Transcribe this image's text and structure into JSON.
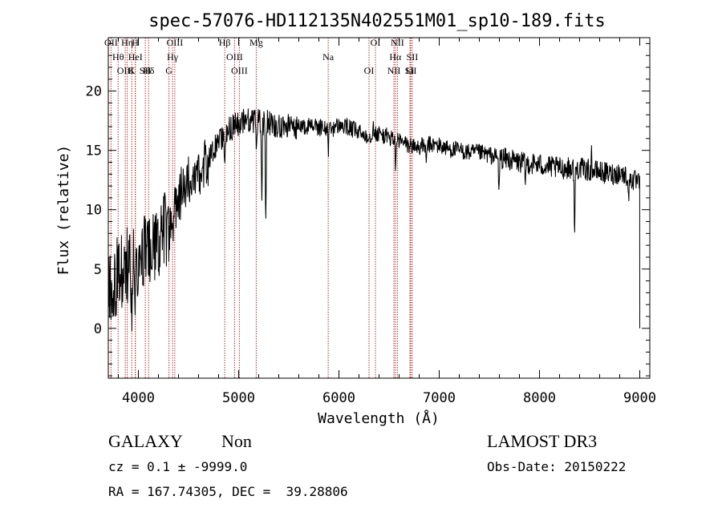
{
  "chart_data": {
    "type": "line",
    "title": "spec-57076-HD112135N402551M01_sp10-189.fits",
    "xlabel": "Wavelength (Å)",
    "ylabel": "Flux (relative)",
    "xlim": [
      3700,
      9100
    ],
    "ylim": [
      -4.2,
      24.5
    ],
    "x_ticks": [
      4000,
      5000,
      6000,
      7000,
      8000,
      9000
    ],
    "y_ticks": [
      0,
      5,
      10,
      15,
      20
    ],
    "x_tick_labels": [
      "4000",
      "5000",
      "6000",
      "7000",
      "8000",
      "9000"
    ],
    "y_tick_labels": [
      "0",
      "5",
      "10",
      "15",
      "20"
    ],
    "grid": false,
    "line_color": "#000000",
    "marker_color": "#b03030",
    "spectrum_anchors": {
      "wavelength": [
        3700,
        3750,
        3800,
        3850,
        3900,
        3950,
        4000,
        4050,
        4100,
        4150,
        4200,
        4250,
        4300,
        4350,
        4400,
        4450,
        4500,
        4550,
        4600,
        4650,
        4700,
        4750,
        4800,
        4850,
        4900,
        4950,
        5000,
        5100,
        5200,
        5300,
        5400,
        5500,
        5600,
        5700,
        5800,
        5900,
        6000,
        6100,
        6200,
        6300,
        6400,
        6500,
        6600,
        6700,
        6800,
        6900,
        7000,
        7100,
        7200,
        7300,
        7400,
        7500,
        7600,
        7700,
        7800,
        7900,
        8000,
        8100,
        8200,
        8300,
        8400,
        8500,
        8600,
        8700,
        8800,
        8900,
        9000
      ],
      "flux": [
        3.0,
        4.0,
        4.5,
        5.0,
        5.3,
        5.5,
        6.0,
        6.3,
        6.6,
        7.0,
        7.4,
        8.0,
        8.5,
        9.5,
        10.8,
        12.0,
        12.7,
        13.0,
        13.3,
        13.6,
        14.2,
        15.0,
        15.7,
        16.2,
        16.7,
        17.0,
        17.3,
        17.6,
        17.5,
        17.3,
        17.1,
        17.0,
        16.9,
        17.0,
        16.9,
        16.7,
        17.1,
        16.9,
        16.5,
        16.2,
        16.4,
        16.1,
        15.8,
        15.4,
        15.3,
        15.5,
        15.4,
        15.1,
        15.0,
        14.8,
        14.8,
        14.6,
        14.4,
        14.2,
        14.0,
        13.9,
        13.8,
        13.6,
        13.5,
        13.5,
        13.5,
        13.3,
        13.2,
        13.0,
        13.1,
        12.7,
        12.1
      ]
    },
    "line_markers": [
      {
        "label": "OII",
        "wavelength": 3727
      },
      {
        "label": "Hθ",
        "wavelength": 3798
      },
      {
        "label": "OIII",
        "wavelength": 3869
      },
      {
        "label": "Hη",
        "wavelength": 3889
      },
      {
        "label": "HeI",
        "wavelength": 3970
      },
      {
        "label": "K",
        "wavelength": 3934
      },
      {
        "label": "H",
        "wavelength": 3969
      },
      {
        "label": "Hδ",
        "wavelength": 4102
      },
      {
        "label": "SII",
        "wavelength": 4069
      },
      {
        "label": "OIII",
        "wavelength": 4363
      },
      {
        "label": "Hγ",
        "wavelength": 4341
      },
      {
        "label": "G",
        "wavelength": 4305
      },
      {
        "label": "Hβ",
        "wavelength": 4861
      },
      {
        "label": "OIII",
        "wavelength": 4959
      },
      {
        "label": "OIII",
        "wavelength": 5007
      },
      {
        "label": "Mg",
        "wavelength": 5175
      },
      {
        "label": "Na",
        "wavelength": 5893
      },
      {
        "label": "OI",
        "wavelength": 6300
      },
      {
        "label": "OI",
        "wavelength": 6364
      },
      {
        "label": "Hα",
        "wavelength": 6563
      },
      {
        "label": "NII",
        "wavelength": 6548
      },
      {
        "label": "NII",
        "wavelength": 6583
      },
      {
        "label": "SII",
        "wavelength": 6716
      },
      {
        "label": "Li",
        "wavelength": 6708
      },
      {
        "label": "SII",
        "wavelength": 6731
      }
    ]
  },
  "info": {
    "class_label": "GALAXY",
    "subclass_label": "Non",
    "survey_label": "LAMOST DR3",
    "cz_text": "cz = 0.1 ± -9999.0",
    "obs_date_text": "Obs-Date: 20150222",
    "radec_text": "RA = 167.74305, DEC =  39.28806"
  }
}
